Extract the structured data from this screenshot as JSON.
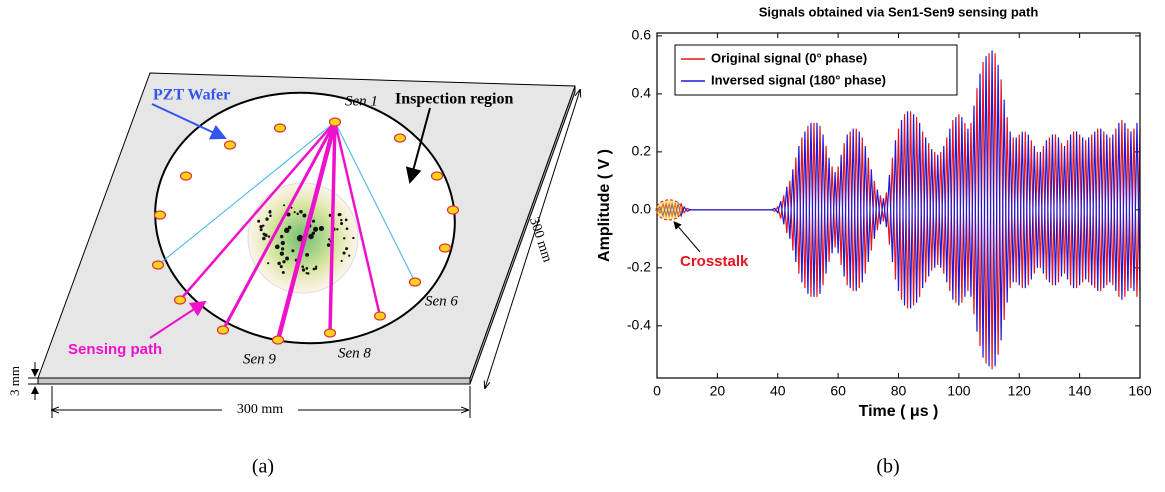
{
  "diagram": {
    "wafer_label": "PZT Wafer",
    "region_label": "Inspection region",
    "path_label": "Sensing path",
    "sensor_labels": [
      "Sen 1",
      "Sen 6",
      "Sen 8",
      "Sen 9"
    ],
    "width_label": "300 mm",
    "depth_label": "300 mm",
    "thickness_label": "3 mm",
    "caption": "(a)"
  },
  "chart_data": {
    "type": "line",
    "title": "Signals obtained via Sen1-Sen9 sensing path",
    "caption": "(b)",
    "xlabel": "Time ( μs )",
    "ylabel": "Amplitude ( V )",
    "annotation": "Crosstalk",
    "xlim": [
      0,
      160
    ],
    "xticks": [
      0,
      20,
      40,
      60,
      80,
      100,
      120,
      140,
      160
    ],
    "ylim": [
      -0.58,
      0.61
    ],
    "yticks": [
      -0.4,
      -0.2,
      {
        "value": 0,
        "label": "0.0"
      },
      0.2,
      0.4,
      0.6
    ],
    "legend": "upper left",
    "x": [
      0,
      1,
      2,
      3,
      4,
      5,
      6,
      7,
      8,
      9,
      10,
      11,
      12,
      13,
      14,
      15,
      16,
      17,
      18,
      19,
      20,
      21,
      22,
      23,
      24,
      25,
      26,
      27,
      28,
      29,
      30,
      31,
      32,
      33,
      34,
      35,
      36,
      37,
      38,
      39,
      40,
      41,
      42,
      43,
      44,
      45,
      46,
      47,
      48,
      49,
      50,
      51,
      52,
      53,
      54,
      55,
      56,
      57,
      58,
      59,
      60,
      61,
      62,
      63,
      64,
      65,
      66,
      67,
      68,
      69,
      70,
      71,
      72,
      73,
      74,
      75,
      76,
      77,
      78,
      79,
      80,
      81,
      82,
      83,
      84,
      85,
      86,
      87,
      88,
      89,
      90,
      91,
      92,
      93,
      94,
      95,
      96,
      97,
      98,
      99,
      100,
      101,
      102,
      103,
      104,
      105,
      106,
      107,
      108,
      109,
      110,
      111,
      112,
      113,
      114,
      115,
      116,
      117,
      118,
      119,
      120,
      121,
      122,
      123,
      124,
      125,
      126,
      127,
      128,
      129,
      130,
      131,
      132,
      133,
      134,
      135,
      136,
      137,
      138,
      139,
      140,
      141,
      142,
      143,
      144,
      145,
      146,
      147,
      148,
      149,
      150,
      151,
      152,
      153,
      154,
      155,
      156,
      157,
      158,
      159,
      160
    ],
    "series": [
      {
        "name": "Original signal (0° phase)",
        "color": "#e8141c",
        "values": [
          0,
          -0.01,
          0.02,
          -0.02,
          0.02,
          -0.02,
          0.02,
          -0.02,
          0.02,
          -0.01,
          0.005,
          0,
          0,
          0,
          0,
          0,
          0,
          0,
          0,
          0,
          0,
          0,
          0,
          0,
          0,
          0,
          0,
          0,
          0,
          0,
          0,
          0,
          0,
          0,
          0,
          0,
          0,
          0,
          0,
          -0.005,
          0.01,
          -0.03,
          0.05,
          -0.08,
          0.1,
          -0.14,
          0.18,
          -0.22,
          0.25,
          -0.27,
          0.29,
          -0.3,
          0.3,
          -0.3,
          0.29,
          -0.26,
          0.22,
          -0.18,
          0.15,
          -0.13,
          0.15,
          -0.19,
          0.23,
          -0.26,
          0.27,
          -0.28,
          0.28,
          -0.27,
          0.25,
          -0.22,
          0.18,
          -0.14,
          0.1,
          -0.07,
          0.05,
          -0.04,
          0.06,
          -0.12,
          0.18,
          -0.24,
          0.28,
          -0.31,
          0.33,
          -0.34,
          0.34,
          -0.33,
          0.32,
          -0.3,
          0.27,
          -0.25,
          0.23,
          -0.21,
          0.2,
          -0.19,
          0.2,
          -0.22,
          0.25,
          -0.28,
          0.31,
          -0.32,
          0.33,
          -0.32,
          0.3,
          -0.28,
          0.3,
          -0.36,
          0.42,
          -0.47,
          0.51,
          -0.53,
          0.54,
          -0.55,
          0.54,
          -0.5,
          0.45,
          -0.38,
          0.32,
          -0.27,
          0.25,
          -0.25,
          0.26,
          -0.27,
          0.27,
          -0.26,
          0.24,
          -0.22,
          0.2,
          -0.2,
          0.22,
          -0.24,
          0.25,
          -0.26,
          0.26,
          -0.25,
          0.23,
          -0.22,
          0.24,
          -0.26,
          0.27,
          -0.27,
          0.26,
          -0.25,
          0.24,
          -0.25,
          0.26,
          -0.27,
          0.28,
          -0.28,
          0.27,
          -0.26,
          0.25,
          -0.26,
          0.28,
          -0.3,
          0.31,
          -0.3,
          0.28,
          -0.27,
          0.28,
          -0.3,
          0.28
        ]
      },
      {
        "name": "Inversed signal (180° phase)",
        "color": "#1a1adc",
        "values": [
          0,
          0.01,
          -0.02,
          0.02,
          -0.02,
          0.02,
          -0.02,
          0.02,
          -0.02,
          0.01,
          -0.005,
          0,
          0,
          0,
          0,
          0,
          0,
          0,
          0,
          0,
          0,
          0,
          0,
          0,
          0,
          0,
          0,
          0,
          0,
          0,
          0,
          0,
          0,
          0,
          0,
          0,
          0,
          0,
          0,
          0.005,
          -0.01,
          0.03,
          -0.05,
          0.08,
          -0.1,
          0.14,
          -0.18,
          0.22,
          -0.25,
          0.27,
          -0.29,
          0.3,
          -0.3,
          0.3,
          -0.29,
          0.26,
          -0.22,
          0.18,
          -0.15,
          0.13,
          -0.15,
          0.19,
          -0.23,
          0.26,
          -0.27,
          0.28,
          -0.28,
          0.27,
          -0.25,
          0.22,
          -0.18,
          0.14,
          -0.1,
          0.07,
          -0.05,
          0.04,
          -0.06,
          0.12,
          -0.18,
          0.24,
          -0.28,
          0.31,
          -0.33,
          0.34,
          -0.34,
          0.33,
          -0.32,
          0.3,
          -0.27,
          0.25,
          -0.23,
          0.21,
          -0.2,
          0.19,
          -0.2,
          0.22,
          -0.25,
          0.28,
          -0.31,
          0.32,
          -0.33,
          0.32,
          -0.3,
          0.28,
          -0.3,
          0.36,
          -0.42,
          0.47,
          -0.51,
          0.53,
          -0.54,
          0.55,
          -0.54,
          0.5,
          -0.45,
          0.38,
          -0.32,
          0.27,
          -0.25,
          0.25,
          -0.26,
          0.27,
          -0.27,
          0.26,
          -0.24,
          0.22,
          -0.2,
          0.2,
          -0.22,
          0.24,
          -0.25,
          0.26,
          -0.26,
          0.25,
          -0.23,
          0.22,
          -0.24,
          0.26,
          -0.27,
          0.27,
          -0.26,
          0.25,
          -0.24,
          0.25,
          -0.26,
          0.27,
          -0.28,
          0.28,
          -0.27,
          0.26,
          -0.25,
          0.26,
          -0.28,
          0.3,
          -0.31,
          0.3,
          -0.28,
          0.27,
          -0.28,
          0.3,
          -0.28
        ]
      }
    ]
  }
}
